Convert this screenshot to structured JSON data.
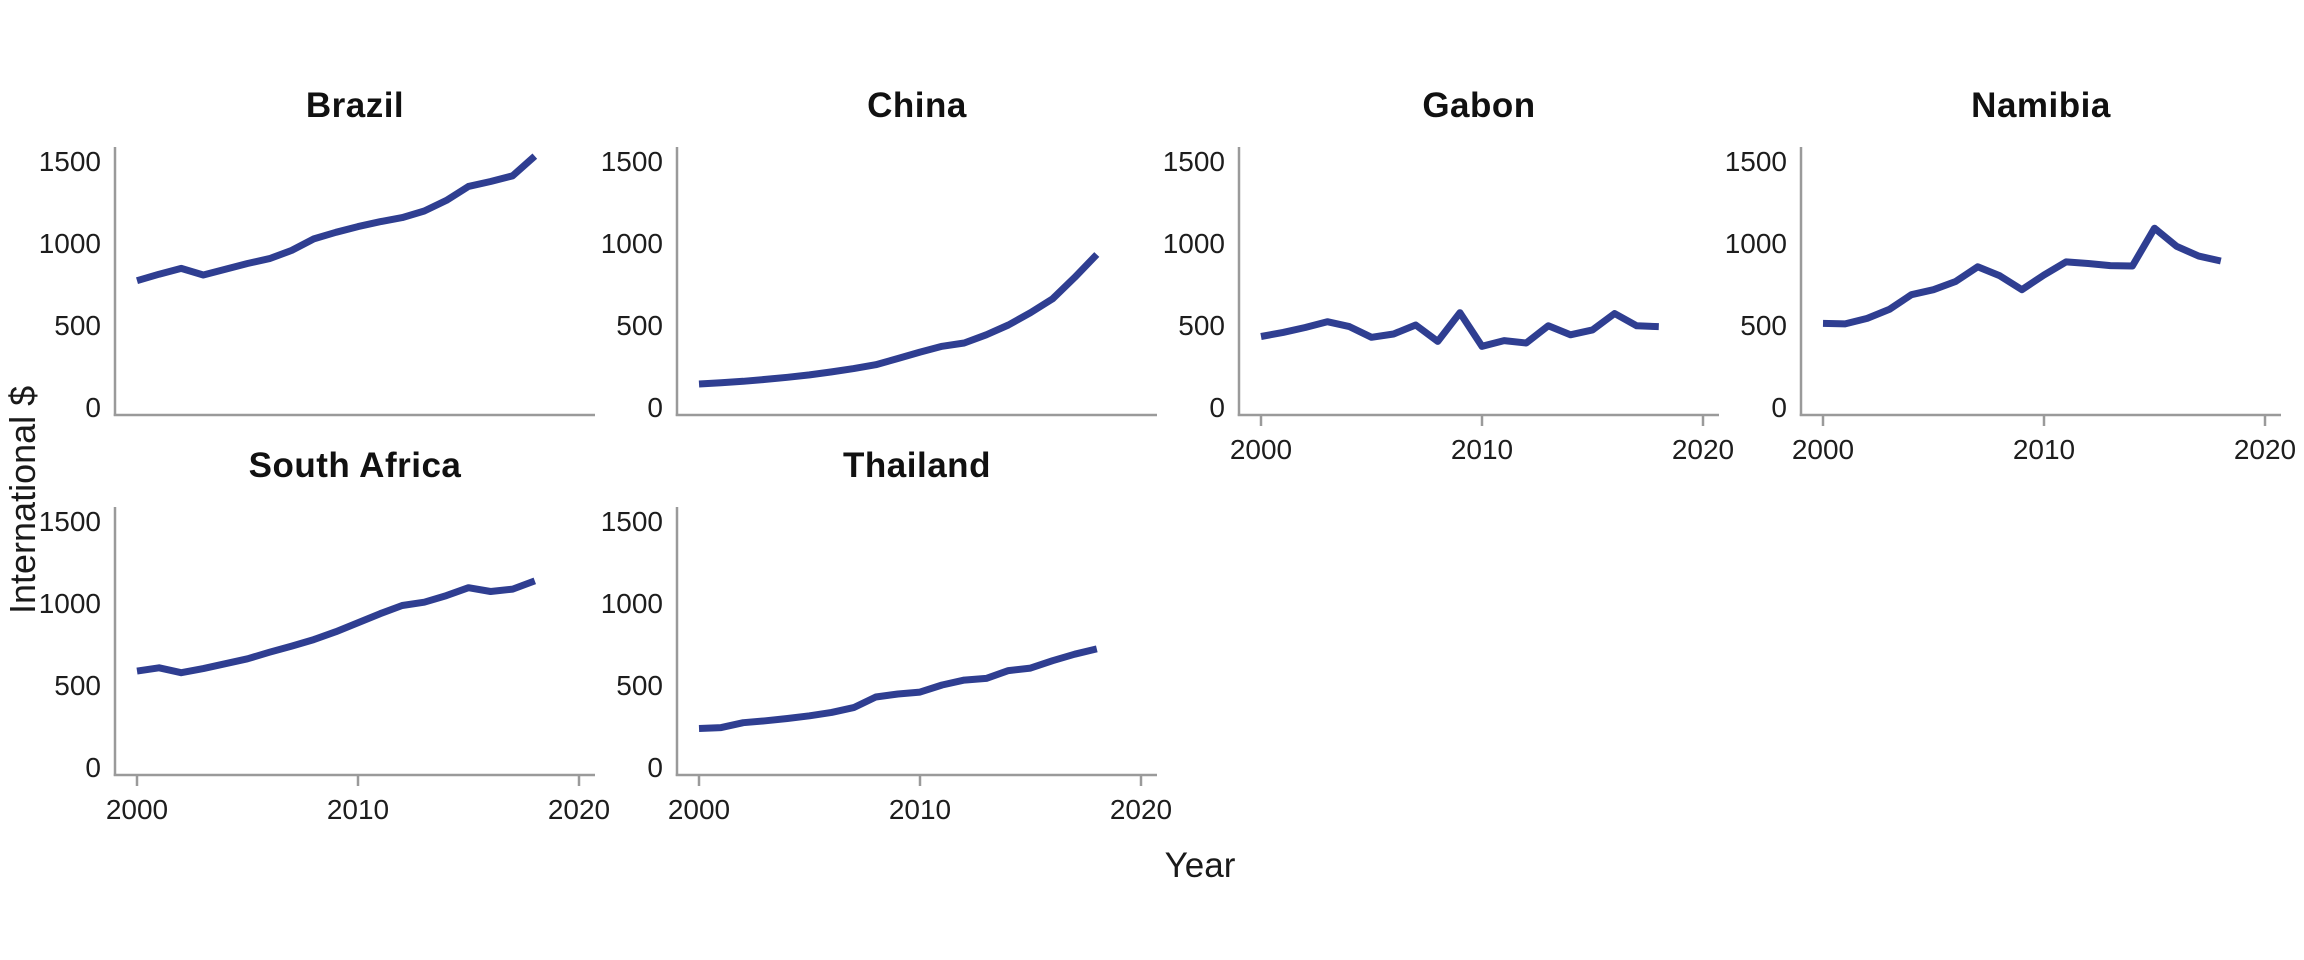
{
  "figure": {
    "ylabel": "International $",
    "xlabel": "Year",
    "line_color": "#2f3e91",
    "axis_color": "#9a9a9a",
    "tick_label_color": "#1d1d1d",
    "title_color": "#111111",
    "background_color": "#ffffff"
  },
  "chart_data": {
    "type": "line",
    "layout": "small-multiples grid, 4 columns x 2 rows, 6 panels, shared axes",
    "title": "",
    "xlabel": "Year",
    "ylabel": "International $",
    "x_ticks": [
      2000,
      2010,
      2020
    ],
    "y_ticks": [
      0,
      500,
      1000,
      1500
    ],
    "xlim": [
      1999,
      2021
    ],
    "ylim": [
      0,
      1600
    ],
    "grid": false,
    "legend": false,
    "x": [
      2000,
      2001,
      2002,
      2003,
      2004,
      2005,
      2006,
      2007,
      2008,
      2009,
      2010,
      2011,
      2012,
      2013,
      2014,
      2015,
      2016,
      2017,
      2018
    ],
    "series": [
      {
        "name": "Brazil",
        "values": [
          770,
          810,
          845,
          805,
          840,
          875,
          905,
          955,
          1025,
          1065,
          1100,
          1130,
          1155,
          1195,
          1260,
          1345,
          1375,
          1410,
          1530
        ]
      },
      {
        "name": "China",
        "values": [
          140,
          148,
          157,
          168,
          181,
          196,
          214,
          234,
          258,
          296,
          335,
          370,
          390,
          440,
          500,
          575,
          660,
          790,
          930
        ]
      },
      {
        "name": "Gabon",
        "values": [
          430,
          455,
          485,
          520,
          490,
          425,
          445,
          500,
          400,
          575,
          370,
          405,
          390,
          495,
          440,
          470,
          570,
          495,
          490
        ]
      },
      {
        "name": "Namibia",
        "values": [
          510,
          507,
          540,
          595,
          685,
          715,
          765,
          855,
          800,
          715,
          805,
          885,
          875,
          862,
          860,
          1090,
          980,
          920,
          890
        ]
      },
      {
        "name": "South Africa",
        "values": [
          585,
          605,
          575,
          600,
          630,
          660,
          700,
          737,
          777,
          825,
          880,
          935,
          985,
          1005,
          1045,
          1093,
          1070,
          1085,
          1135
        ]
      },
      {
        "name": "Thailand",
        "values": [
          235,
          240,
          270,
          282,
          296,
          312,
          333,
          362,
          427,
          445,
          457,
          500,
          530,
          540,
          588,
          603,
          648,
          688,
          720
        ]
      }
    ]
  }
}
